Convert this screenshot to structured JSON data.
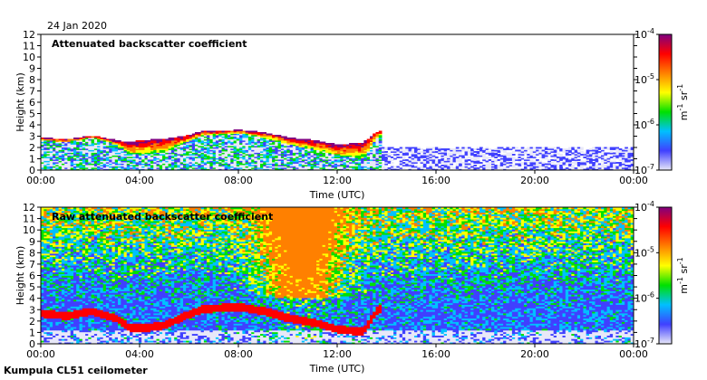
{
  "date": "24 Jan 2020",
  "site": "Kumpula CL51 ceilometer",
  "colormap": [
    "#e8e8f8",
    "#4040ff",
    "#00c0ff",
    "#00e000",
    "#ffff00",
    "#ff8000",
    "#ff0000",
    "#800080"
  ],
  "chart_data": [
    {
      "type": "heatmap",
      "title": "Attenuated backscatter coefficient",
      "xlabel": "Time (UTC)",
      "ylabel": "Height (km)",
      "x_ticks": [
        "00:00",
        "04:00",
        "08:00",
        "12:00",
        "16:00",
        "20:00",
        "00:00"
      ],
      "y_ticks": [
        "0",
        "1",
        "2",
        "3",
        "4",
        "5",
        "6",
        "7",
        "8",
        "9",
        "10",
        "11",
        "12"
      ],
      "xlim": [
        0,
        24
      ],
      "ylim": [
        0,
        12
      ],
      "colorbar": {
        "scale": "log",
        "range": [
          1e-07,
          0.0001
        ],
        "ticks": [
          {
            "base": "10",
            "exp": "-4",
            "value": 0.0001
          },
          {
            "base": "10",
            "exp": "-5",
            "value": 1e-05
          },
          {
            "base": "10",
            "exp": "-6",
            "value": 1e-06
          },
          {
            "base": "10",
            "exp": "-7",
            "value": 1e-07
          }
        ],
        "unit": {
          "m": "m",
          "m_exp": "-1",
          "sr": " sr",
          "sr_exp": "-1"
        }
      },
      "cloud_base_km": [
        [
          0.0,
          2.6
        ],
        [
          1.0,
          2.4
        ],
        [
          2.0,
          2.8
        ],
        [
          3.0,
          2.2
        ],
        [
          3.5,
          1.4
        ],
        [
          4.0,
          1.3
        ],
        [
          5.0,
          1.6
        ],
        [
          5.8,
          2.4
        ],
        [
          6.5,
          3.0
        ],
        [
          8.0,
          3.2
        ],
        [
          9.0,
          2.8
        ],
        [
          10.0,
          2.2
        ],
        [
          11.0,
          1.8
        ],
        [
          12.0,
          1.2
        ],
        [
          13.0,
          1.0
        ],
        [
          13.6,
          3.0
        ]
      ],
      "cloud_top_km": [
        [
          0.0,
          2.8
        ],
        [
          1.0,
          2.7
        ],
        [
          2.0,
          3.0
        ],
        [
          3.0,
          2.6
        ],
        [
          3.5,
          2.4
        ],
        [
          4.0,
          2.6
        ],
        [
          5.0,
          2.7
        ],
        [
          5.8,
          3.0
        ],
        [
          6.5,
          3.4
        ],
        [
          8.0,
          3.5
        ],
        [
          9.0,
          3.3
        ],
        [
          10.0,
          2.8
        ],
        [
          11.0,
          2.6
        ],
        [
          12.0,
          2.2
        ],
        [
          13.0,
          2.4
        ],
        [
          13.6,
          3.4
        ]
      ],
      "boundary_layer_top_km": 2.0
    },
    {
      "type": "heatmap",
      "title": "Raw attenuated backscatter coefficient",
      "xlabel": "Time (UTC)",
      "ylabel": "Height (km)",
      "x_ticks": [
        "00:00",
        "04:00",
        "08:00",
        "12:00",
        "16:00",
        "20:00",
        "00:00"
      ],
      "y_ticks": [
        "0",
        "1",
        "2",
        "3",
        "4",
        "5",
        "6",
        "7",
        "8",
        "9",
        "10",
        "11",
        "12"
      ],
      "xlim": [
        0,
        24
      ],
      "ylim": [
        0,
        12
      ],
      "colorbar": {
        "scale": "log",
        "range": [
          1e-07,
          0.0001
        ],
        "ticks": [
          {
            "base": "10",
            "exp": "-4",
            "value": 0.0001
          },
          {
            "base": "10",
            "exp": "-5",
            "value": 1e-05
          },
          {
            "base": "10",
            "exp": "-6",
            "value": 1e-06
          },
          {
            "base": "10",
            "exp": "-7",
            "value": 1e-07
          }
        ],
        "unit": {
          "m": "m",
          "m_exp": "-1",
          "sr": " sr",
          "sr_exp": "-1"
        }
      },
      "cloud_base_km": [
        [
          0.0,
          2.6
        ],
        [
          1.0,
          2.4
        ],
        [
          2.0,
          2.8
        ],
        [
          3.0,
          2.2
        ],
        [
          3.5,
          1.4
        ],
        [
          4.0,
          1.3
        ],
        [
          5.0,
          1.6
        ],
        [
          5.8,
          2.4
        ],
        [
          6.5,
          3.0
        ],
        [
          8.0,
          3.2
        ],
        [
          9.0,
          2.8
        ],
        [
          10.0,
          2.2
        ],
        [
          11.0,
          1.8
        ],
        [
          12.0,
          1.2
        ],
        [
          13.0,
          1.0
        ],
        [
          13.6,
          3.0
        ]
      ],
      "noise_peak_time_h": 10.5
    }
  ]
}
